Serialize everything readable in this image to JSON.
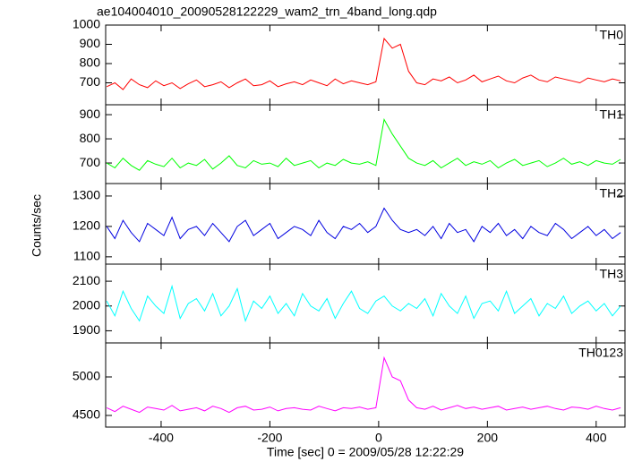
{
  "chart_data": {
    "type": "line",
    "title": "ae104004010_20090528122229_wam2_trn_4band_long.qdp",
    "xlabel": "Time [sec] 0 = 2009/05/28 12:22:29",
    "ylabel": "Counts/sec",
    "xlim": [
      -502,
      453
    ],
    "xticks": [
      -400,
      -200,
      0,
      200,
      400
    ],
    "x": [
      -500,
      -485,
      -470,
      -455,
      -440,
      -425,
      -410,
      -395,
      -380,
      -365,
      -350,
      -335,
      -320,
      -305,
      -290,
      -275,
      -260,
      -245,
      -230,
      -215,
      -200,
      -185,
      -170,
      -155,
      -140,
      -125,
      -110,
      -95,
      -80,
      -65,
      -50,
      -35,
      -20,
      -5,
      10,
      25,
      40,
      55,
      70,
      85,
      100,
      115,
      130,
      145,
      160,
      175,
      190,
      205,
      220,
      235,
      250,
      265,
      280,
      295,
      310,
      325,
      340,
      355,
      370,
      385,
      400,
      415,
      430,
      445
    ],
    "panels": [
      {
        "label": "TH0",
        "color": "#ff0000",
        "ylim": [
          586,
          1000
        ],
        "yticks": [
          700,
          800,
          900,
          1000
        ],
        "values": [
          680,
          700,
          665,
          720,
          690,
          675,
          710,
          685,
          700,
          670,
          695,
          715,
          680,
          690,
          705,
          675,
          700,
          720,
          685,
          690,
          710,
          680,
          695,
          705,
          690,
          715,
          700,
          685,
          720,
          695,
          710,
          700,
          690,
          705,
          930,
          880,
          900,
          760,
          700,
          690,
          720,
          710,
          730,
          700,
          715,
          740,
          705,
          720,
          735,
          710,
          700,
          725,
          740,
          715,
          705,
          730,
          720,
          710,
          700,
          725,
          715,
          705,
          720,
          710
        ]
      },
      {
        "label": "TH1",
        "color": "#00ff00",
        "ylim": [
          615,
          941
        ],
        "yticks": [
          700,
          800,
          900
        ],
        "values": [
          700,
          680,
          720,
          690,
          670,
          710,
          695,
          685,
          720,
          680,
          700,
          690,
          715,
          675,
          700,
          730,
          690,
          680,
          710,
          695,
          700,
          685,
          720,
          690,
          700,
          710,
          680,
          700,
          690,
          715,
          700,
          695,
          705,
          690,
          880,
          820,
          770,
          720,
          700,
          690,
          710,
          680,
          700,
          720,
          690,
          705,
          695,
          710,
          680,
          700,
          715,
          690,
          700,
          710,
          685,
          700,
          720,
          695,
          705,
          690,
          710,
          700,
          695,
          715
        ]
      },
      {
        "label": "TH2",
        "color": "#0000e0",
        "ylim": [
          1076,
          1341
        ],
        "yticks": [
          1100,
          1200,
          1300
        ],
        "values": [
          1200,
          1160,
          1220,
          1180,
          1150,
          1210,
          1190,
          1170,
          1230,
          1160,
          1190,
          1200,
          1170,
          1210,
          1180,
          1150,
          1200,
          1220,
          1170,
          1190,
          1210,
          1160,
          1180,
          1200,
          1190,
          1170,
          1220,
          1180,
          1160,
          1200,
          1190,
          1210,
          1180,
          1200,
          1260,
          1220,
          1190,
          1180,
          1190,
          1170,
          1200,
          1160,
          1210,
          1180,
          1190,
          1150,
          1200,
          1180,
          1210,
          1170,
          1190,
          1160,
          1200,
          1180,
          1170,
          1210,
          1190,
          1160,
          1180,
          1200,
          1170,
          1190,
          1160,
          1180
        ]
      },
      {
        "label": "TH3",
        "color": "#00ffff",
        "ylim": [
          1851,
          2169
        ],
        "yticks": [
          1900,
          2000,
          2100
        ],
        "values": [
          2020,
          1960,
          2060,
          1990,
          1940,
          2040,
          2000,
          1970,
          2080,
          1950,
          2010,
          2030,
          1980,
          2050,
          1960,
          2000,
          2070,
          1940,
          2020,
          1990,
          2040,
          1970,
          2010,
          1960,
          2050,
          2000,
          1980,
          2030,
          1950,
          2010,
          2060,
          1990,
          1970,
          2020,
          2040,
          2000,
          1980,
          2010,
          1990,
          2030,
          1960,
          2050,
          2000,
          1970,
          2040,
          1950,
          2010,
          2020,
          1980,
          2060,
          1970,
          2000,
          2030,
          1960,
          2010,
          1990,
          2040,
          1970,
          2000,
          2020,
          1980,
          2010,
          1960,
          2000
        ]
      },
      {
        "label": "TH0123",
        "color": "#ff00ff",
        "ylim": [
          4349,
          5442
        ],
        "yticks": [
          4500,
          5000
        ],
        "values": [
          4600,
          4550,
          4620,
          4580,
          4540,
          4610,
          4590,
          4570,
          4630,
          4560,
          4580,
          4600,
          4560,
          4620,
          4590,
          4540,
          4600,
          4620,
          4570,
          4580,
          4610,
          4560,
          4590,
          4600,
          4580,
          4570,
          4620,
          4590,
          4560,
          4600,
          4590,
          4610,
          4580,
          4600,
          5250,
          5000,
          4950,
          4700,
          4600,
          4580,
          4620,
          4570,
          4600,
          4630,
          4590,
          4610,
          4580,
          4600,
          4620,
          4570,
          4590,
          4610,
          4580,
          4600,
          4620,
          4590,
          4570,
          4610,
          4600,
          4580,
          4620,
          4590,
          4570,
          4600
        ]
      }
    ]
  }
}
